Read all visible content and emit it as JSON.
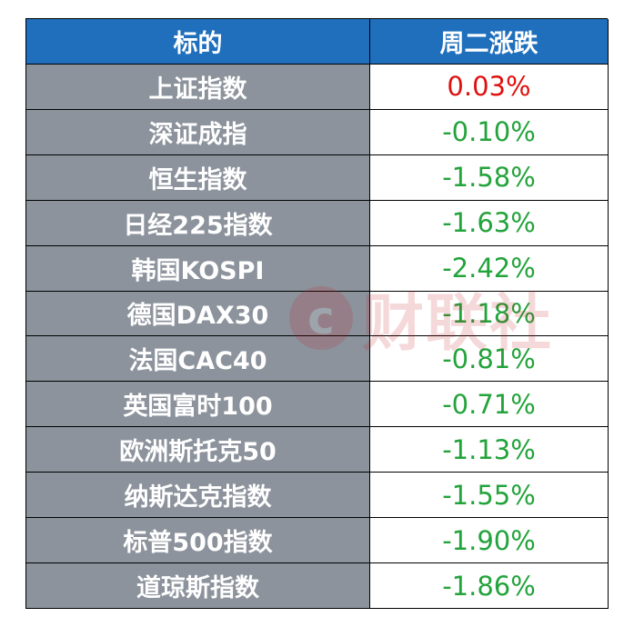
{
  "table": {
    "headers": [
      "标的",
      "周二涨跌"
    ],
    "rows": [
      {
        "name": "上证指数",
        "change": "0.03%",
        "dir": "up"
      },
      {
        "name": "深证成指",
        "change": "-0.10%",
        "dir": "down"
      },
      {
        "name": "恒生指数",
        "change": "-1.58%",
        "dir": "down"
      },
      {
        "name": "日经225指数",
        "change": "-1.63%",
        "dir": "down"
      },
      {
        "name": "韩国KOSPI",
        "change": "-2.42%",
        "dir": "down"
      },
      {
        "name": "德国DAX30",
        "change": "-1.18%",
        "dir": "down"
      },
      {
        "name": "法国CAC40",
        "change": "-0.81%",
        "dir": "down"
      },
      {
        "name": "英国富时100",
        "change": "-0.71%",
        "dir": "down"
      },
      {
        "name": "欧洲斯托克50",
        "change": "-1.13%",
        "dir": "down"
      },
      {
        "name": "纳斯达克指数",
        "change": "-1.55%",
        "dir": "down"
      },
      {
        "name": "标普500指数",
        "change": "-1.90%",
        "dir": "down"
      },
      {
        "name": "道琼斯指数",
        "change": "-1.86%",
        "dir": "down"
      }
    ]
  },
  "colors": {
    "header_bg": "#1f6fbd",
    "name_bg": "#8c939c",
    "up": "#e01010",
    "down": "#23a33b",
    "watermark": "#c8191e"
  },
  "watermark": {
    "logo_letter": "c",
    "text": "财联社"
  }
}
